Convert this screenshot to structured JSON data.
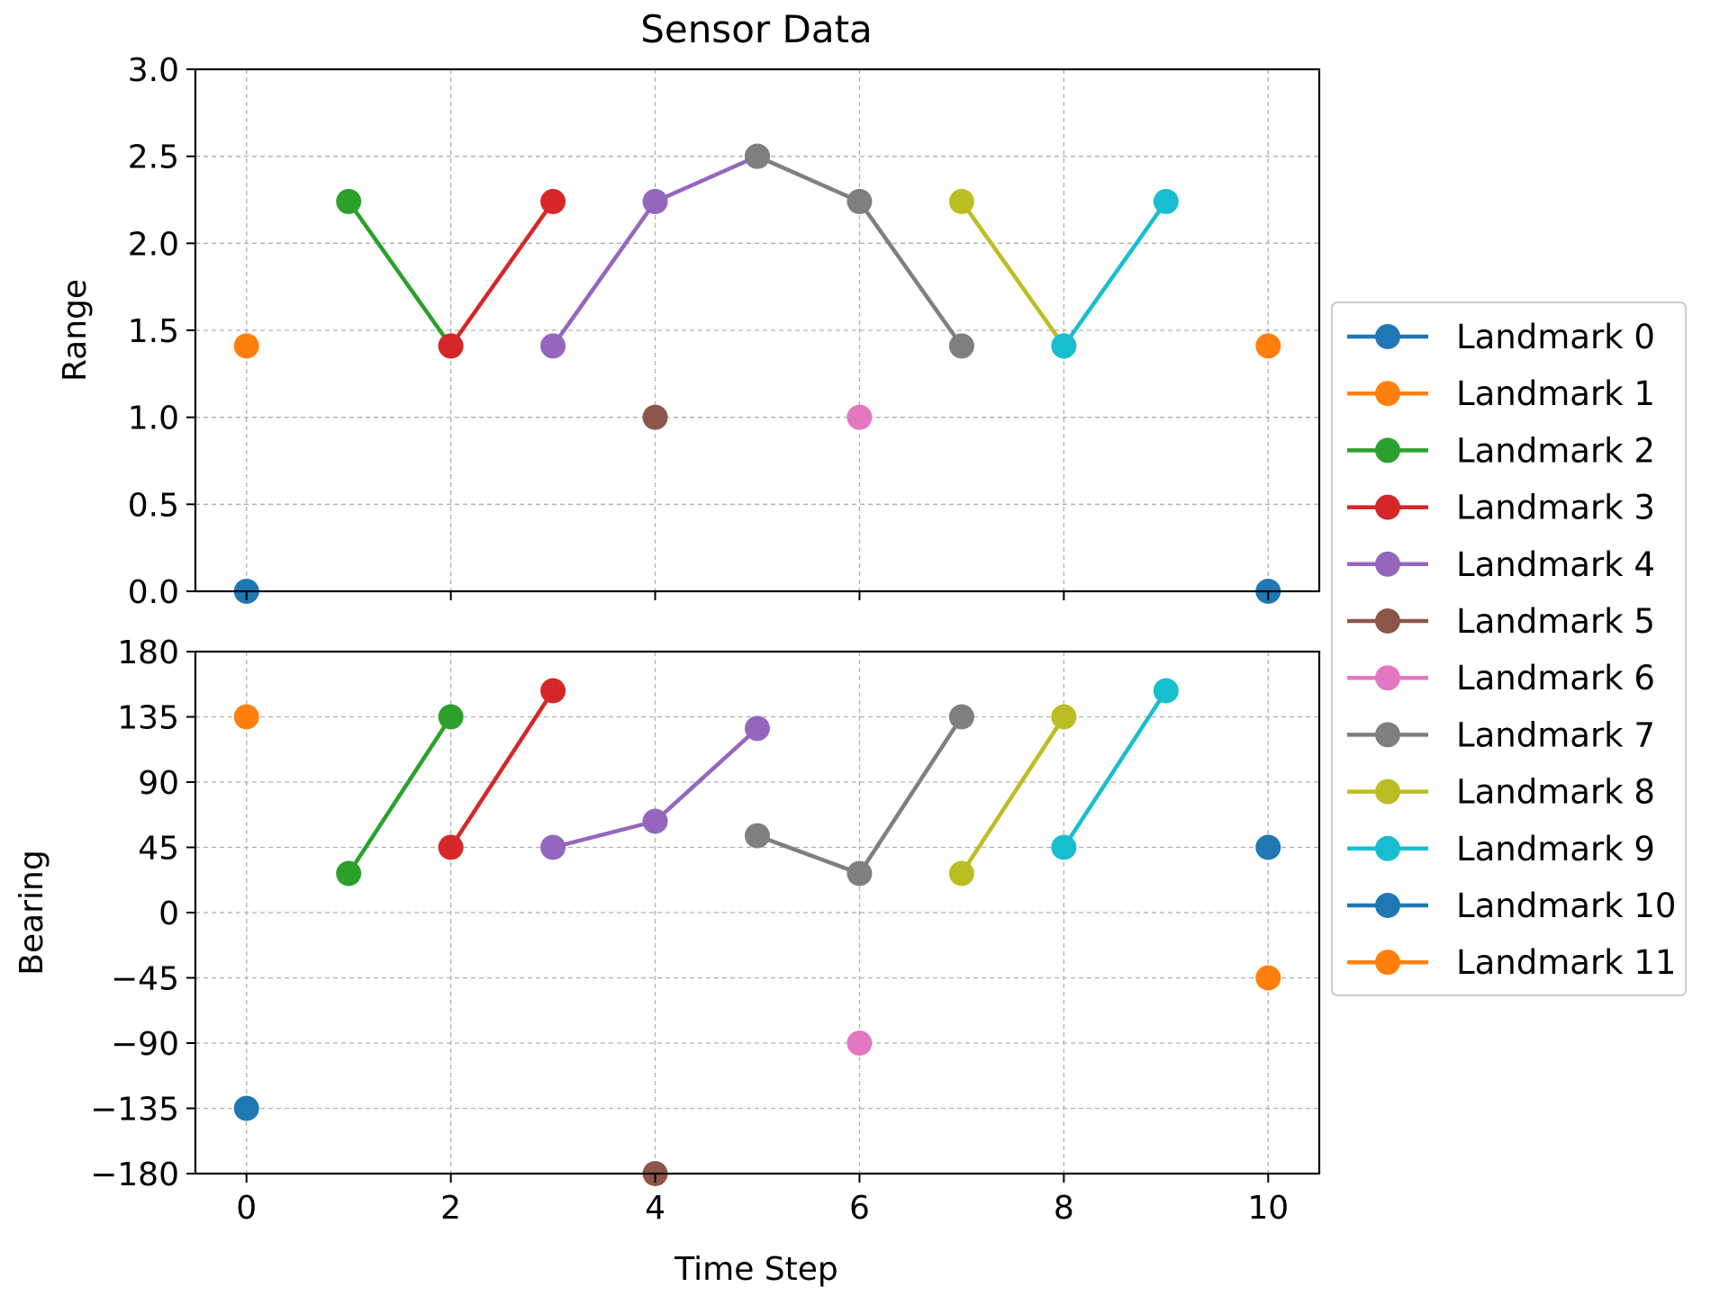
{
  "chart_data": {
    "type": "line",
    "title": "Sensor Data",
    "xlabel": "Time Step",
    "grid": true,
    "legend_position": "right",
    "x_ticks": [
      0,
      2,
      4,
      6,
      8,
      10
    ],
    "xlim": [
      -0.5,
      10.5
    ],
    "subplots": [
      {
        "id": "range",
        "ylabel": "Range",
        "ylim": [
          0,
          3
        ],
        "y_ticks": [
          0,
          0.5,
          1,
          1.5,
          2,
          2.5,
          3
        ],
        "y_tick_labels": [
          "0.0",
          "0.5",
          "1.0",
          "1.5",
          "2.0",
          "2.5",
          "3.0"
        ]
      },
      {
        "id": "bearing",
        "ylabel": "Bearing",
        "ylim": [
          -180,
          180
        ],
        "y_ticks": [
          -180,
          -135,
          -90,
          -45,
          0,
          45,
          90,
          135,
          180
        ],
        "y_tick_labels": [
          "−180",
          "−135",
          "−90",
          "−45",
          "0",
          "45",
          "90",
          "135",
          "180"
        ]
      }
    ],
    "series": [
      {
        "name": "Landmark 0",
        "color": "#1f77b4",
        "x": [
          0
        ],
        "range": [
          0
        ],
        "bearing": [
          -135
        ]
      },
      {
        "name": "Landmark 1",
        "color": "#ff7f0e",
        "x": [
          0
        ],
        "range": [
          1.41
        ],
        "bearing": [
          135
        ]
      },
      {
        "name": "Landmark 2",
        "color": "#2ca02c",
        "x": [
          1,
          2
        ],
        "range": [
          2.24,
          1.41
        ],
        "bearing": [
          27,
          135
        ]
      },
      {
        "name": "Landmark 3",
        "color": "#d62728",
        "x": [
          2,
          3
        ],
        "range": [
          1.41,
          2.24
        ],
        "bearing": [
          45,
          153
        ]
      },
      {
        "name": "Landmark 4",
        "color": "#9467bd",
        "x": [
          3,
          4,
          5
        ],
        "range": [
          1.41,
          2.24,
          2.5
        ],
        "bearing": [
          45,
          63,
          127
        ]
      },
      {
        "name": "Landmark 5",
        "color": "#8c564b",
        "x": [
          4
        ],
        "range": [
          1.0
        ],
        "bearing": [
          -180
        ]
      },
      {
        "name": "Landmark 6",
        "color": "#e377c2",
        "x": [
          6
        ],
        "range": [
          1.0
        ],
        "bearing": [
          -90
        ]
      },
      {
        "name": "Landmark 7",
        "color": "#7f7f7f",
        "x": [
          5,
          6,
          7
        ],
        "range": [
          2.5,
          2.24,
          1.41
        ],
        "bearing": [
          53,
          27,
          135
        ]
      },
      {
        "name": "Landmark 8",
        "color": "#bcbd22",
        "x": [
          7,
          8
        ],
        "range": [
          2.24,
          1.41
        ],
        "bearing": [
          27,
          135
        ]
      },
      {
        "name": "Landmark 9",
        "color": "#17becf",
        "x": [
          8,
          9
        ],
        "range": [
          1.41,
          2.24
        ],
        "bearing": [
          45,
          153
        ]
      },
      {
        "name": "Landmark 10",
        "color": "#1f77b4",
        "x": [
          10
        ],
        "range": [
          0
        ],
        "bearing": [
          45
        ]
      },
      {
        "name": "Landmark 11",
        "color": "#ff7f0e",
        "x": [
          10
        ],
        "range": [
          1.41
        ],
        "bearing": [
          -45
        ]
      }
    ]
  }
}
